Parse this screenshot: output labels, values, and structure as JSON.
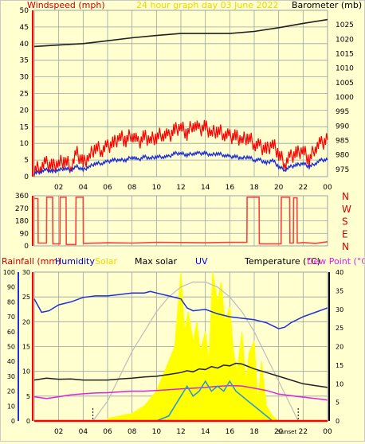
{
  "header": {
    "left_label": "Windspeed (mph)",
    "title": "24 hour graph day  03 June 2022",
    "right_label": "Barometer (mb)"
  },
  "legend_row": {
    "rainfall": "Rainfall (mm)",
    "humidity": "Humidity",
    "solar": "Solar",
    "max_solar": "Max solar",
    "uv": "UV",
    "temperature": "Temperature (°C)",
    "dew_point": "Dew Point (°C)"
  },
  "sun_labels": {
    "sunrise": "Sunrise",
    "sunset": "Sunset"
  },
  "colors": {
    "background": "#ffffcf",
    "grid": "#9aa4a4",
    "windspeed": "#ff0000",
    "wind_avg": "#1f2fd8",
    "barometer": "#202020",
    "wind_direction": "#ff4040",
    "humidity": "#1f2fd8",
    "solar": "#ffff00",
    "max_solar": "#bdbdbd",
    "uv": "#2a9ad8",
    "temperature": "#202020",
    "dew_point": "#e020e0",
    "rainfall": "#ff0000",
    "title": "#e8d800",
    "red_text": "#d00000",
    "blue_text": "#0000c0",
    "pink_text": "#e020e0",
    "uv_text": "#0000ff"
  },
  "chart_data": [
    {
      "type": "line",
      "name": "wind_and_barometer",
      "x_ticks": [
        "02",
        "04",
        "06",
        "08",
        "10",
        "12",
        "14",
        "16",
        "18",
        "20",
        "22",
        "00"
      ],
      "x_range_hours": [
        0,
        24
      ],
      "left_axis": {
        "ticks": [
          0,
          5,
          10,
          15,
          20,
          25,
          30,
          35,
          40,
          45,
          50
        ],
        "range": [
          0,
          50
        ]
      },
      "right_axis": {
        "ticks": [
          975,
          980,
          985,
          990,
          995,
          1000,
          1005,
          1010,
          1015,
          1020,
          1025
        ],
        "range": [
          972.5,
          1030
        ]
      },
      "series": [
        {
          "name": "Windspeed (mph)",
          "kind": "gust",
          "x": [
            0,
            0.5,
            1,
            1.5,
            2,
            2.5,
            3,
            3.5,
            4,
            4.5,
            5,
            5.5,
            6,
            6.5,
            7,
            7.5,
            8,
            8.5,
            9,
            9.5,
            10,
            10.5,
            11,
            11.5,
            12,
            12.5,
            13,
            13.5,
            14,
            14.5,
            15,
            15.5,
            16,
            16.5,
            17,
            17.5,
            18,
            18.5,
            19,
            19.5,
            20,
            20.5,
            21,
            21.5,
            22,
            22.5,
            23,
            23.5,
            24
          ],
          "values": [
            2,
            3,
            4,
            3,
            4,
            5,
            3,
            7,
            4,
            6,
            9,
            8,
            9,
            10,
            12,
            11,
            13,
            10,
            12,
            11,
            12,
            13,
            12,
            14,
            15,
            13,
            16,
            14,
            15,
            13,
            14,
            13,
            12,
            12,
            11,
            12,
            10,
            9,
            8,
            10,
            7,
            4,
            6,
            7,
            8,
            5,
            9,
            10,
            11
          ]
        },
        {
          "name": "Windspeed (mph)",
          "kind": "average",
          "x": [
            0,
            0.5,
            1,
            1.5,
            2,
            2.5,
            3,
            3.5,
            4,
            4.5,
            5,
            5.5,
            6,
            6.5,
            7,
            7.5,
            8,
            8.5,
            9,
            9.5,
            10,
            10.5,
            11,
            11.5,
            12,
            12.5,
            13,
            13.5,
            14,
            14.5,
            15,
            15.5,
            16,
            16.5,
            17,
            17.5,
            18,
            18.5,
            19,
            19.5,
            20,
            20.5,
            21,
            21.5,
            22,
            22.5,
            23,
            23.5,
            24
          ],
          "values": [
            1,
            1.5,
            2,
            1.5,
            2,
            2.5,
            2,
            3,
            2,
            3,
            4,
            4,
            4.5,
            5,
            5,
            5,
            6,
            5,
            6,
            5.5,
            6,
            6,
            6,
            7,
            7,
            6.5,
            7,
            7,
            7,
            6.5,
            7,
            6.5,
            6,
            6,
            5.5,
            6,
            5,
            5,
            4,
            5,
            3,
            2,
            3,
            3.5,
            4,
            3,
            4,
            5,
            5
          ]
        },
        {
          "name": "Barometer (mb)",
          "x": [
            0,
            2,
            4,
            6,
            8,
            10,
            12,
            14,
            16,
            18,
            20,
            22,
            24
          ],
          "values": [
            1017.5,
            1018,
            1018.5,
            1019.5,
            1020.5,
            1021.3,
            1022,
            1022,
            1022,
            1022.7,
            1024,
            1025.5,
            1026.8
          ]
        }
      ]
    },
    {
      "type": "line",
      "name": "wind_direction",
      "y_ticks": [
        0,
        90,
        180,
        270,
        360
      ],
      "compass_labels": [
        "N",
        "W",
        "S",
        "E",
        "N"
      ],
      "y_range": [
        0,
        360
      ],
      "x_range_hours": [
        0,
        24
      ],
      "series": [
        {
          "name": "Wind direction",
          "x": [
            0,
            0.3,
            0.32,
            1.0,
            1.02,
            1.5,
            1.52,
            2.1,
            2.12,
            2.6,
            2.62,
            3.4,
            3.42,
            4.0,
            4.02,
            6,
            8,
            10,
            12,
            14,
            16,
            17.4,
            17.42,
            18.4,
            18.42,
            20.2,
            20.22,
            20.9,
            20.92,
            21.2,
            21.22,
            21.5,
            21.52,
            22,
            23,
            24
          ],
          "values": [
            340,
            340,
            20,
            20,
            350,
            350,
            15,
            15,
            350,
            350,
            10,
            10,
            350,
            350,
            18,
            22,
            20,
            25,
            24,
            22,
            25,
            25,
            350,
            350,
            15,
            15,
            350,
            350,
            20,
            20,
            345,
            345,
            20,
            24,
            18,
            30
          ]
        }
      ]
    },
    {
      "type": "line",
      "name": "solar_humidity_temperature",
      "x_ticks": [
        "02",
        "04",
        "06",
        "08",
        "10",
        "12",
        "14",
        "16",
        "18",
        "20",
        "22",
        "00"
      ],
      "x_range_hours": [
        0,
        24
      ],
      "humidity_axis": {
        "ticks": [
          0,
          10,
          20,
          30,
          40,
          50,
          60,
          70,
          80,
          90,
          100
        ],
        "range": [
          0,
          100
        ]
      },
      "rainfall_axis": {
        "ticks": [
          0,
          5,
          10,
          15,
          20,
          25,
          30
        ],
        "range": [
          0,
          30
        ]
      },
      "temperature_axis": {
        "ticks": [
          0,
          5,
          10,
          15,
          20,
          25,
          30,
          35,
          40
        ],
        "range": [
          0,
          40
        ]
      },
      "sunrise_hour": 4.8,
      "sunset_hour": 21.6,
      "series": [
        {
          "name": "Humidity",
          "x": [
            0,
            0.6,
            1.2,
            2,
            3,
            4,
            5,
            6,
            7,
            8,
            9,
            9.5,
            10,
            11,
            12,
            12.5,
            13,
            14,
            15,
            16,
            17,
            18,
            18.5,
            19,
            20,
            20.5,
            21,
            22,
            23,
            24
          ],
          "values": [
            82,
            73,
            74,
            78,
            80,
            83,
            84,
            84,
            85,
            86,
            86,
            87,
            86,
            84,
            82,
            76,
            74,
            75,
            72,
            70,
            69,
            68,
            67,
            66,
            62,
            63,
            66,
            70,
            73,
            76
          ]
        },
        {
          "name": "Max solar",
          "x": [
            4.8,
            6,
            7,
            8,
            9,
            10,
            11,
            12,
            13,
            14,
            15,
            16,
            17,
            18,
            19,
            20,
            21,
            21.6
          ],
          "values": [
            0,
            4,
            9,
            14,
            18,
            22,
            25,
            27,
            28,
            28,
            27,
            25,
            22,
            18,
            13,
            8,
            3,
            0
          ]
        },
        {
          "name": "Solar",
          "x": [
            6,
            7,
            8,
            9,
            10,
            11,
            11.5,
            12,
            12.3,
            12.6,
            13,
            13.3,
            13.6,
            14,
            14.3,
            14.6,
            15,
            15.3,
            15.6,
            16,
            16.3,
            16.6,
            17,
            17.3,
            17.6,
            18,
            18.3,
            18.6,
            19,
            19.5,
            20
          ],
          "values": [
            0.5,
            1,
            1.5,
            3,
            6,
            12,
            15,
            30,
            18,
            22,
            16,
            20,
            14,
            18,
            12,
            30,
            24,
            28,
            20,
            23,
            14,
            10,
            18,
            8,
            14,
            16,
            4,
            12,
            3,
            1,
            0
          ]
        },
        {
          "name": "UV",
          "x": [
            10,
            11,
            11.5,
            12,
            12.5,
            13,
            13.5,
            14,
            14.5,
            15,
            15.5,
            16,
            16.5,
            17,
            17.5,
            18,
            18.5,
            19,
            19.5
          ],
          "values": [
            0,
            1,
            3,
            5,
            7,
            5,
            6,
            8,
            6,
            7,
            6,
            8,
            6,
            5,
            4,
            3,
            2,
            1,
            0
          ]
        },
        {
          "name": "Temperature (°C)",
          "x": [
            0,
            1,
            2,
            3,
            4,
            5,
            6,
            7,
            8,
            9,
            10,
            11,
            12,
            12.5,
            13,
            13.5,
            14,
            14.5,
            15,
            15.5,
            16,
            16.5,
            17,
            18,
            19,
            20,
            21,
            22,
            23,
            24
          ],
          "values": [
            11,
            11.5,
            11.2,
            11.3,
            11,
            11,
            11,
            11.3,
            11.5,
            11.8,
            12,
            12.5,
            13,
            13.5,
            13.2,
            14,
            13.8,
            14.6,
            14.2,
            15,
            14.8,
            15.5,
            15.3,
            14,
            13,
            12,
            11,
            10,
            9.5,
            9
          ]
        },
        {
          "name": "Dew Point (°C)",
          "x": [
            0,
            1,
            2,
            3,
            4,
            5,
            6,
            7,
            8,
            9,
            10,
            11,
            12,
            13,
            14,
            15,
            16,
            17,
            18,
            19,
            20,
            21,
            22,
            23,
            24
          ],
          "values": [
            6.5,
            6,
            6.5,
            7,
            7.3,
            7.5,
            7.6,
            7.8,
            8,
            8,
            8.2,
            8.4,
            8.6,
            8.8,
            9,
            9.3,
            9.5,
            9.4,
            8.8,
            8.2,
            7.2,
            6.8,
            6.4,
            6,
            5.6
          ]
        },
        {
          "name": "Rainfall (mm)",
          "x": [
            0,
            24
          ],
          "values": [
            0,
            0
          ]
        }
      ]
    }
  ]
}
